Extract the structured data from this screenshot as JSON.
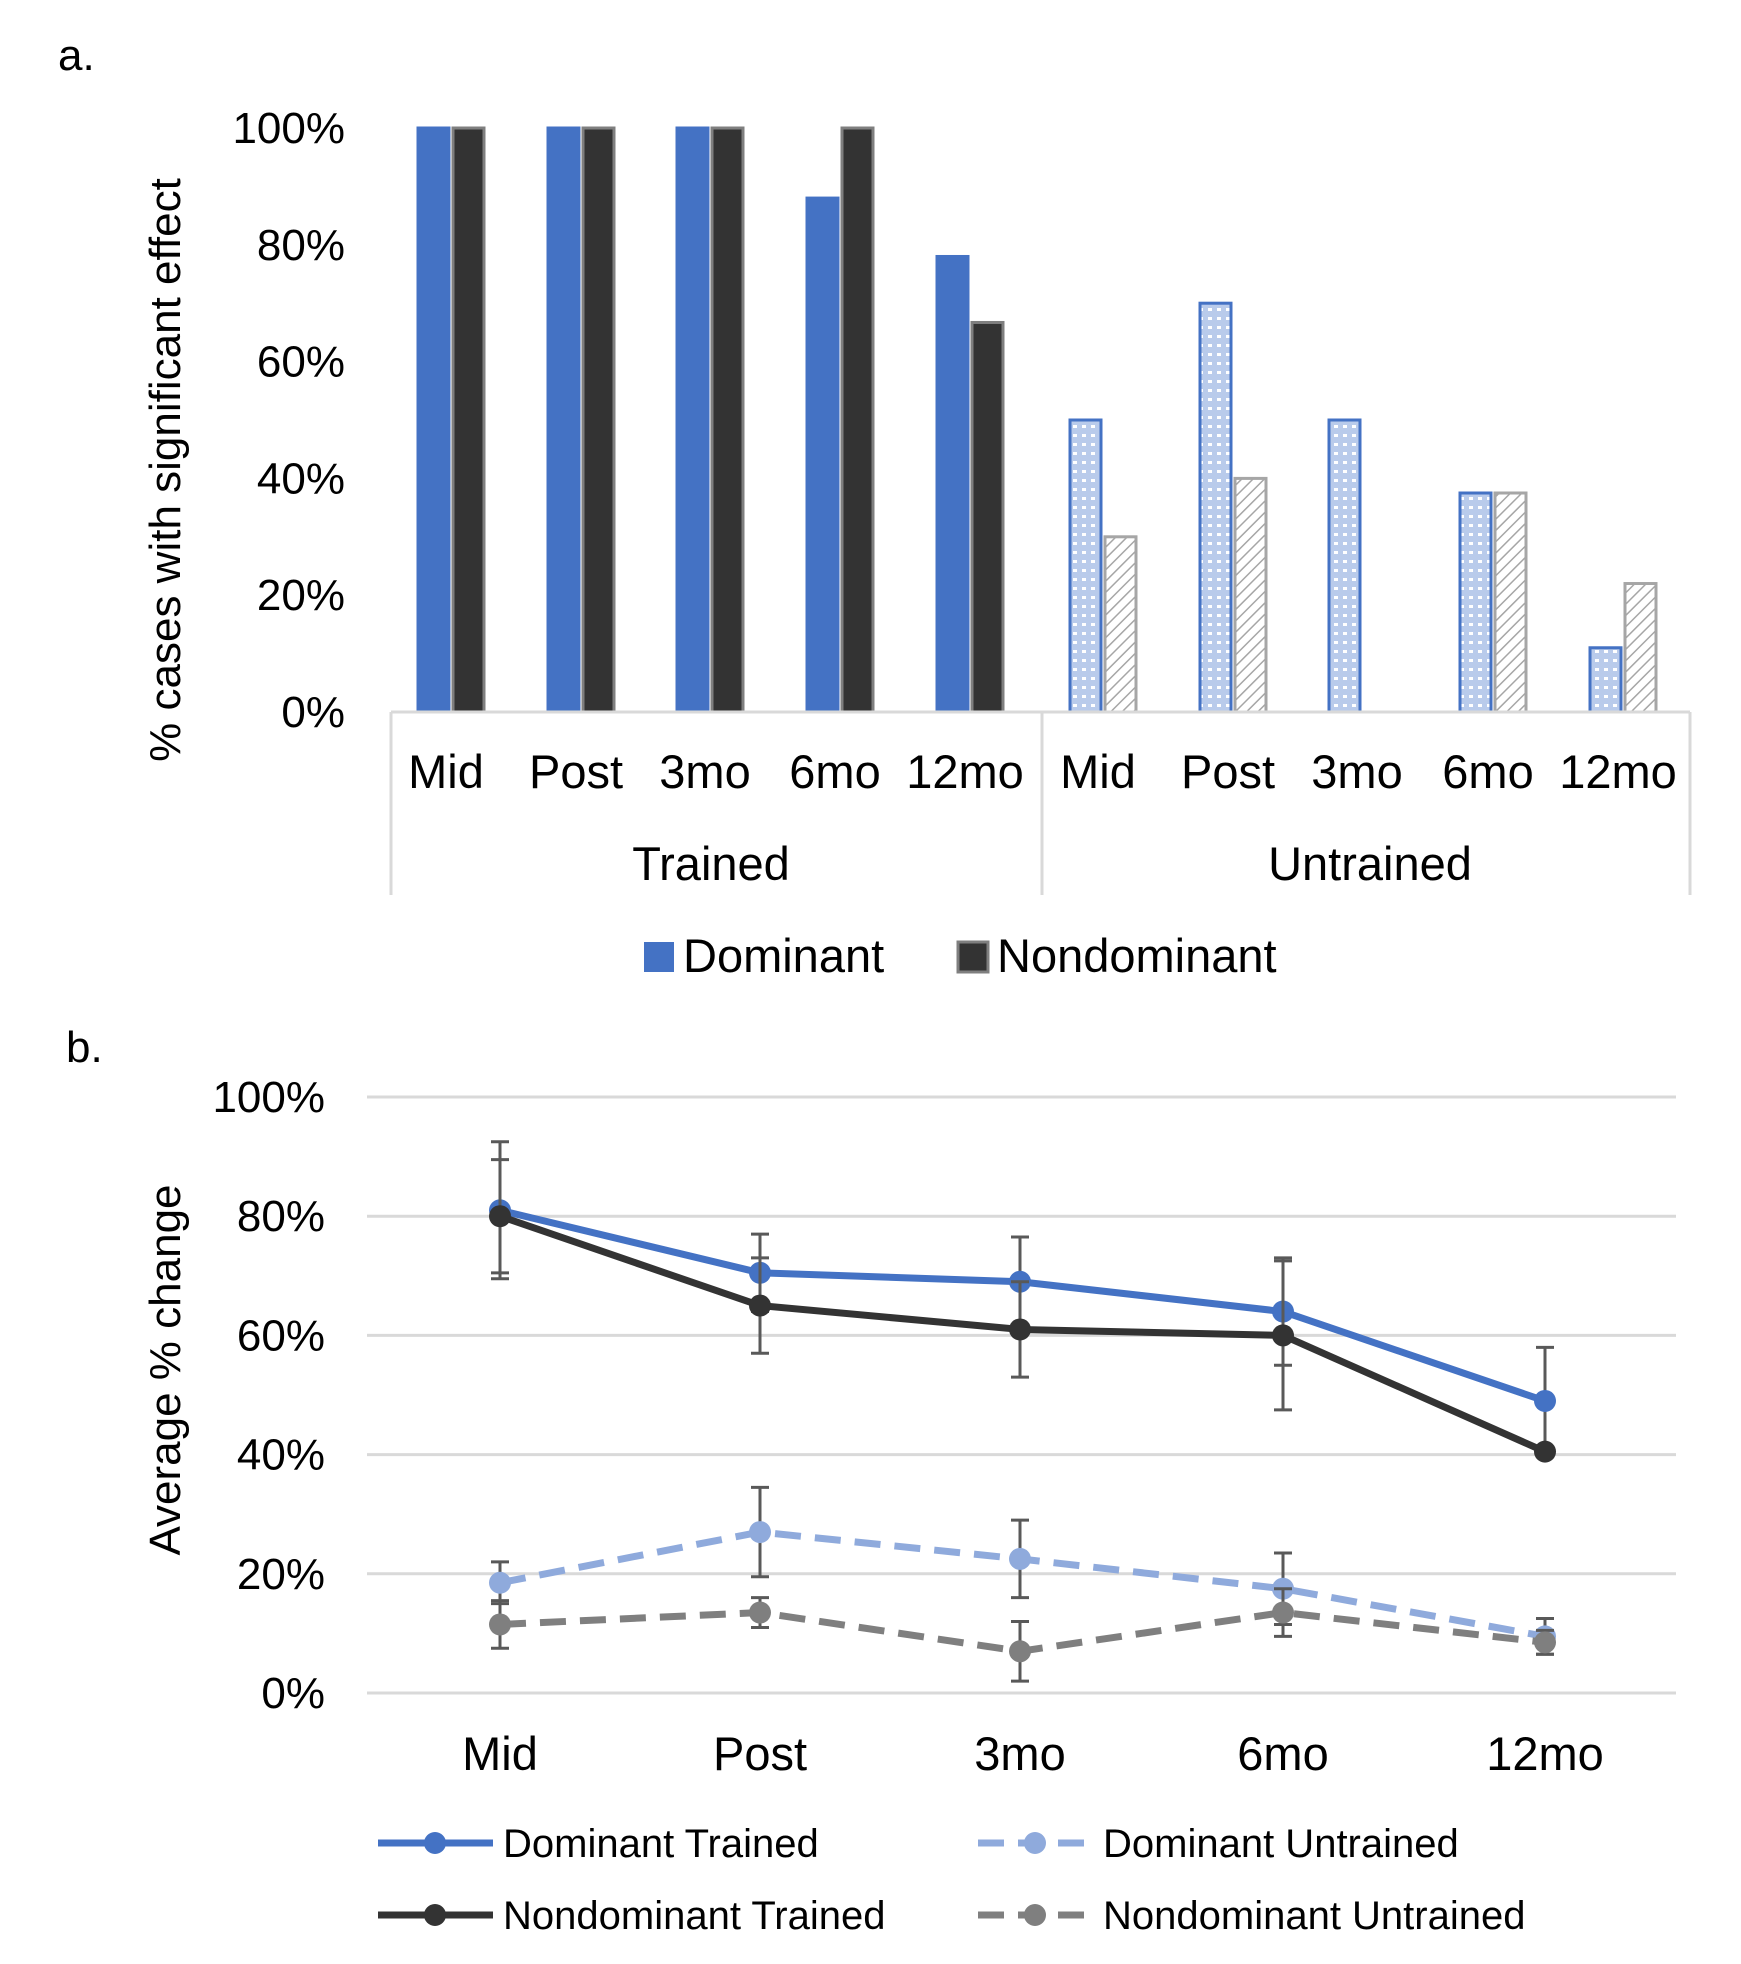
{
  "panel_labels": {
    "a": "a.",
    "b": "b."
  },
  "chart_data": [
    {
      "type": "bar",
      "panel": "a",
      "ylabel": "% cases with significant effect",
      "ylim": [
        0,
        100
      ],
      "yticks": [
        0,
        20,
        40,
        60,
        80,
        100
      ],
      "ytick_labels": [
        "0%",
        "20%",
        "40%",
        "60%",
        "80%",
        "100%"
      ],
      "groups": [
        "Trained",
        "Untrained"
      ],
      "categories": [
        "Mid",
        "Post",
        "3mo",
        "6mo",
        "12mo"
      ],
      "series": [
        {
          "name": "Dominant",
          "color": "#4472c4",
          "trained": [
            100,
            100,
            100,
            88,
            78
          ],
          "untrained": [
            50,
            70,
            50,
            37.5,
            11
          ]
        },
        {
          "name": "Nondominant",
          "color": "#333333",
          "trained": [
            100,
            100,
            100,
            100,
            66.7
          ],
          "untrained": [
            30,
            40,
            0,
            37.5,
            22
          ]
        }
      ],
      "legend": [
        "Dominant",
        "Nondominant"
      ],
      "legend_position": "bottom",
      "untrained_fill": "patterned"
    },
    {
      "type": "line",
      "panel": "b",
      "ylabel": "Average % change",
      "ylim": [
        0,
        100
      ],
      "yticks": [
        0,
        20,
        40,
        60,
        80,
        100
      ],
      "ytick_labels": [
        "0%",
        "20%",
        "40%",
        "60%",
        "80%",
        "100%"
      ],
      "categories": [
        "Mid",
        "Post",
        "3mo",
        "6mo",
        "12mo"
      ],
      "grid": true,
      "legend_position": "bottom",
      "series": [
        {
          "name": "Dominant Trained",
          "color": "#4472c4",
          "dashed": false,
          "values": [
            81,
            70.5,
            69,
            64,
            49
          ],
          "error": [
            11.5,
            6.5,
            7.5,
            9,
            9
          ]
        },
        {
          "name": "Nondominant Trained",
          "color": "#333333",
          "dashed": false,
          "values": [
            80,
            65,
            61,
            60,
            40.5
          ],
          "error": [
            9.5,
            8,
            8,
            12.5,
            0
          ]
        },
        {
          "name": "Dominant Untrained",
          "color": "#8faadc",
          "dashed": true,
          "values": [
            18.5,
            27,
            22.5,
            17.5,
            9.5
          ],
          "error": [
            3.5,
            7.5,
            6.5,
            6,
            3
          ]
        },
        {
          "name": "Nondominant Untrained",
          "color": "#7f7f7f",
          "dashed": true,
          "values": [
            11.5,
            13.5,
            7,
            13.5,
            8.5
          ],
          "error": [
            4,
            2.5,
            5,
            4,
            2
          ]
        }
      ]
    }
  ]
}
